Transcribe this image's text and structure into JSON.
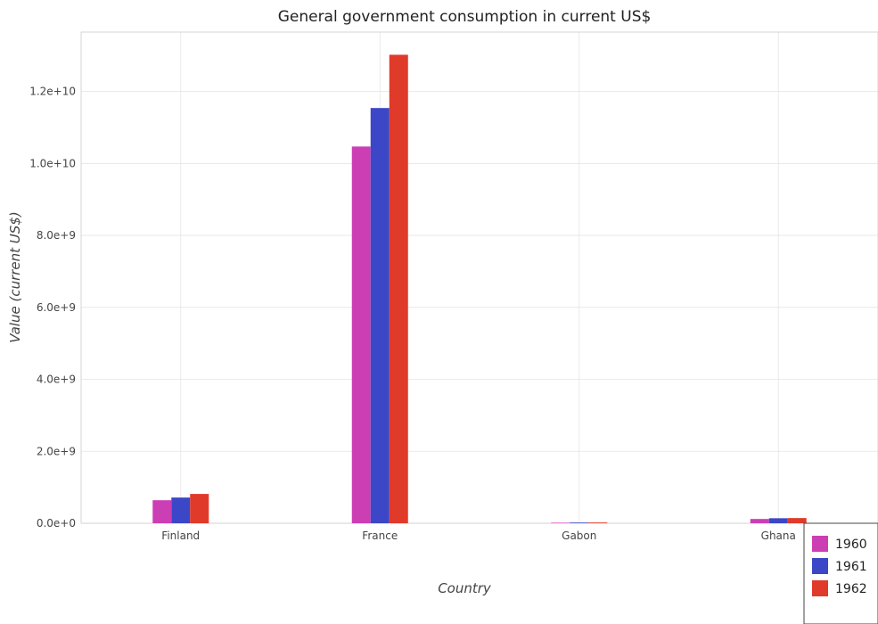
{
  "chart_data": {
    "type": "bar",
    "title": "General government consumption in current US$",
    "xlabel": "Country",
    "ylabel": "Value (current US$)",
    "categories": [
      "Finland",
      "France",
      "Gabon",
      "Ghana"
    ],
    "series": [
      {
        "name": "1960",
        "color": "#cc3eb4",
        "values": [
          640000000,
          10470000000,
          15000000,
          120000000
        ]
      },
      {
        "name": "1961",
        "color": "#3b47c6",
        "values": [
          715000000,
          11540000000,
          20000000,
          140000000
        ]
      },
      {
        "name": "1962",
        "color": "#e03a2a",
        "values": [
          815000000,
          13020000000,
          22000000,
          145000000
        ]
      }
    ],
    "yticks": [
      0,
      2000000000,
      4000000000,
      6000000000,
      8000000000,
      10000000000,
      12000000000
    ],
    "ytick_labels": [
      "0.0e+0",
      "2.0e+9",
      "4.0e+9",
      "6.0e+9",
      "8.0e+9",
      "1.0e+10",
      "1.2e+10"
    ],
    "ylim": [
      0,
      13650000000
    ],
    "grid": true,
    "legend_position": "bottom-right"
  }
}
